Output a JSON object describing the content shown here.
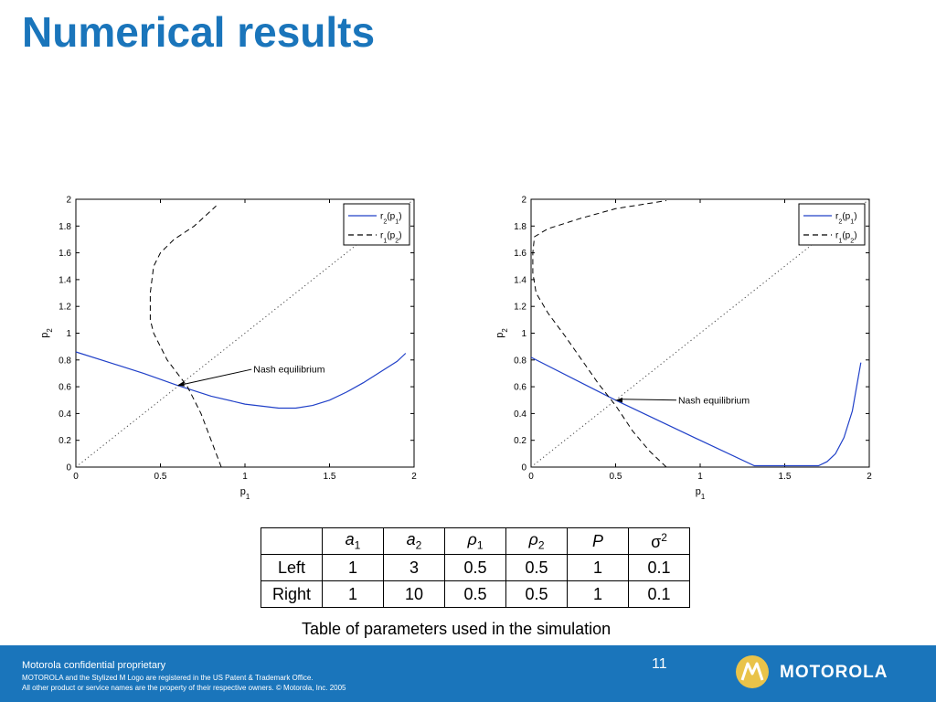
{
  "slide": {
    "title": "Numerical results",
    "page_number": "11"
  },
  "chart_data": [
    {
      "type": "line",
      "xlim": [
        0,
        2
      ],
      "ylim": [
        0,
        2
      ],
      "xticks": [
        "0",
        "0.5",
        "1",
        "1.5",
        "2"
      ],
      "yticks": [
        "0",
        "0.2",
        "0.4",
        "0.6",
        "0.8",
        "1",
        "1.2",
        "1.4",
        "1.6",
        "1.8",
        "2"
      ],
      "grid": false,
      "legend_position": "top-right",
      "legend": [
        "r2(p1)",
        "r1(p2)"
      ],
      "xlabel": "p1",
      "ylabel": "p2",
      "series": [
        {
          "name": "r2(p1)",
          "style": "solid",
          "color": "#2040c8",
          "x": [
            0,
            0.2,
            0.4,
            0.6,
            0.8,
            1.0,
            1.2,
            1.3,
            1.4,
            1.5,
            1.6,
            1.7,
            1.8,
            1.9,
            1.95
          ],
          "y": [
            0.86,
            0.78,
            0.7,
            0.61,
            0.53,
            0.47,
            0.44,
            0.44,
            0.46,
            0.5,
            0.56,
            0.63,
            0.71,
            0.79,
            0.85
          ]
        },
        {
          "name": "r1(p2)",
          "style": "dashed",
          "color": "#000000",
          "x": [
            0.86,
            0.8,
            0.74,
            0.66,
            0.6,
            0.54,
            0.5,
            0.46,
            0.44,
            0.44,
            0.46,
            0.5,
            0.58,
            0.7,
            0.83
          ],
          "y": [
            0,
            0.2,
            0.4,
            0.6,
            0.7,
            0.8,
            0.9,
            1.0,
            1.1,
            1.3,
            1.5,
            1.6,
            1.7,
            1.8,
            1.95
          ]
        },
        {
          "name": "",
          "style": "dotted",
          "color": "#444444",
          "x": [
            0,
            2
          ],
          "y": [
            0,
            2
          ]
        }
      ],
      "annotation": {
        "text": "Nash equilibrium",
        "point": [
          0.6,
          0.61
        ],
        "label_at": [
          1.05,
          0.73
        ]
      }
    },
    {
      "type": "line",
      "xlim": [
        0,
        2
      ],
      "ylim": [
        0,
        2
      ],
      "xticks": [
        "0",
        "0.5",
        "1",
        "1.5",
        "2"
      ],
      "yticks": [
        "0",
        "0.2",
        "0.4",
        "0.6",
        "0.8",
        "1",
        "1.2",
        "1.4",
        "1.6",
        "1.8",
        "2"
      ],
      "grid": false,
      "legend_position": "top-right",
      "legend": [
        "r2(p1)",
        "r1(p2)"
      ],
      "xlabel": "p1",
      "ylabel": "p2",
      "series": [
        {
          "name": "r2(p1)",
          "style": "solid",
          "color": "#2040c8",
          "x": [
            0,
            0.5,
            1.0,
            1.32,
            1.4,
            1.5,
            1.6,
            1.7,
            1.75,
            1.8,
            1.85,
            1.9,
            1.95
          ],
          "y": [
            0.82,
            0.5,
            0.2,
            0.01,
            0.01,
            0.01,
            0.01,
            0.01,
            0.04,
            0.1,
            0.22,
            0.42,
            0.78
          ]
        },
        {
          "name": "r1(p2)",
          "style": "dashed",
          "color": "#000000",
          "x": [
            0.8,
            0.7,
            0.6,
            0.5,
            0.4,
            0.3,
            0.2,
            0.1,
            0.03,
            0.01,
            0.01,
            0.02,
            0.1,
            0.3,
            0.5,
            0.8
          ],
          "y": [
            0,
            0.12,
            0.27,
            0.46,
            0.62,
            0.8,
            0.98,
            1.15,
            1.3,
            1.45,
            1.6,
            1.72,
            1.78,
            1.86,
            1.93,
            1.99
          ]
        },
        {
          "name": "",
          "style": "dotted",
          "color": "#444444",
          "x": [
            0,
            2
          ],
          "y": [
            0,
            2
          ]
        }
      ],
      "annotation": {
        "text": "Nash equilibrium",
        "point": [
          0.5,
          0.5
        ],
        "label_at": [
          0.87,
          0.5
        ]
      }
    }
  ],
  "table": {
    "headers": [
      {
        "base": "",
        "sub": "",
        "sup": ""
      },
      {
        "base": "a",
        "sub": "1",
        "sup": ""
      },
      {
        "base": "a",
        "sub": "2",
        "sup": ""
      },
      {
        "base": "ρ",
        "sub": "1",
        "sup": ""
      },
      {
        "base": "ρ",
        "sub": "2",
        "sup": ""
      },
      {
        "base": "P",
        "sub": "",
        "sup": ""
      },
      {
        "base": "σ",
        "sub": "",
        "sup": "2"
      }
    ],
    "rows": [
      [
        "Left",
        "1",
        "3",
        "0.5",
        "0.5",
        "1",
        "0.1"
      ],
      [
        "Right",
        "1",
        "10",
        "0.5",
        "0.5",
        "1",
        "0.1"
      ]
    ],
    "caption": "Table of parameters used in the simulation"
  },
  "footer": {
    "line1": "Motorola confidential proprietary",
    "line2": "MOTOROLA and the Stylized M Logo are registered in the US Patent & Trademark Office.",
    "line3": "All other product or service names are the property of their respective owners. © Motorola, Inc. 2005",
    "logo_text": "MOTOROLA"
  }
}
